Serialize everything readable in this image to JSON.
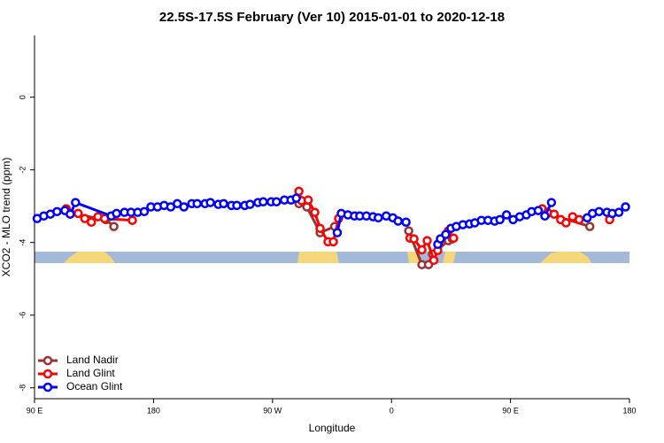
{
  "chart_data": {
    "type": "line",
    "title": "22.5S-17.5S February (Ver 10)   2015-01-01 to 2020-12-18",
    "x_label": "Longitude",
    "y_label": "XCO2 - MLO trend (ppm)",
    "xlim": [
      90,
      540
    ],
    "ylim": [
      -8.3,
      1.7
    ],
    "xticks": [
      {
        "value": 90,
        "label": "90 E"
      },
      180,
      {
        "value": 270,
        "label": "90 W"
      },
      {
        "value": 360,
        "label": "0"
      },
      {
        "value": 450,
        "label": "90 E"
      },
      {
        "value": 540,
        "label": "180"
      }
    ],
    "yticks": [
      0,
      -2,
      -4,
      -6,
      -8
    ],
    "legend": "bottom-left",
    "series": [
      {
        "name": "Land Nadir",
        "color": "#993333",
        "x": [
          117,
          144,
          150,
          null,
          290,
          296,
          306,
          317,
          null,
          373,
          383,
          388,
          391,
          403,
          406,
          null,
          478,
          510
        ],
        "values": [
          -3.2,
          -3.37,
          -3.56,
          null,
          -2.93,
          -3.02,
          -3.73,
          -3.56,
          null,
          -3.68,
          -4.61,
          -4.61,
          -4.32,
          -3.95,
          -3.9,
          null,
          -3.2,
          -3.56
        ]
      },
      {
        "name": "Land Glint",
        "color": "#ff0000",
        "x": [
          114,
          123,
          128,
          133,
          138,
          143,
          164,
          null,
          290,
          292,
          297,
          302,
          306,
          312,
          316,
          320,
          null,
          374,
          377,
          383,
          387,
          392,
          395,
          403,
          407,
          null,
          474,
          478,
          483,
          488,
          492,
          497,
          502,
          null,
          525
        ],
        "values": [
          -3.07,
          -3.2,
          -3.34,
          -3.44,
          -3.29,
          -3.34,
          -3.39,
          null,
          -2.59,
          -2.85,
          -2.83,
          -3.17,
          -3.61,
          -3.98,
          -3.98,
          -3.34,
          null,
          -3.88,
          -3.9,
          -4.2,
          -3.95,
          -4.49,
          -4.22,
          -3.68,
          -3.88,
          null,
          -3.07,
          -3.17,
          -3.22,
          -3.37,
          -3.46,
          -3.29,
          -3.37,
          null,
          -3.37
        ]
      },
      {
        "name": "Ocean Glint",
        "color": "#0000ff",
        "x": [
          92,
          97,
          102,
          107,
          113,
          117,
          121,
          148,
          152,
          158,
          163,
          168,
          173,
          178,
          183,
          188,
          193,
          198,
          203,
          209,
          213,
          219,
          223,
          229,
          233,
          239,
          243,
          249,
          253,
          259,
          263,
          269,
          273,
          279,
          284,
          288,
          null,
          319,
          322,
          327,
          332,
          336,
          341,
          346,
          350,
          356,
          361,
          365,
          371,
          null,
          395,
          397,
          401,
          405,
          409,
          414,
          419,
          423,
          428,
          433,
          438,
          442,
          447,
          452,
          457,
          462,
          466,
          471,
          476,
          481,
          null,
          508,
          512,
          517,
          523,
          527,
          532,
          537
        ],
        "values": [
          -3.34,
          -3.27,
          -3.22,
          -3.15,
          -3.12,
          -3.22,
          -2.9,
          -3.27,
          -3.2,
          -3.17,
          -3.17,
          -3.17,
          -3.15,
          -3.02,
          -3.02,
          -2.98,
          -3.02,
          -2.93,
          -3.02,
          -2.93,
          -2.93,
          -2.93,
          -2.9,
          -2.95,
          -2.93,
          -2.98,
          -2.98,
          -2.98,
          -2.95,
          -2.9,
          -2.88,
          -2.88,
          -2.88,
          -2.83,
          -2.83,
          -2.78,
          null,
          -3.73,
          -3.2,
          -3.24,
          -3.27,
          -3.27,
          -3.27,
          -3.29,
          -3.32,
          -3.27,
          -3.32,
          -3.41,
          -3.44,
          null,
          -4.05,
          -3.9,
          -3.78,
          -3.61,
          -3.56,
          -3.51,
          -3.49,
          -3.46,
          -3.39,
          -3.39,
          -3.41,
          -3.37,
          -3.24,
          -3.37,
          -3.29,
          -3.24,
          -3.15,
          -3.12,
          -3.27,
          -2.9,
          null,
          -3.32,
          -3.2,
          -3.15,
          -3.17,
          -3.2,
          -3.17,
          -3.02
        ]
      }
    ]
  }
}
